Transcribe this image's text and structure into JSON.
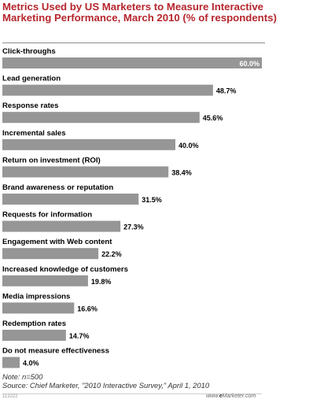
{
  "title": "Metrics Used by US Marketers to Measure Interactive Marketing Performance, March 2010 (% of respondents)",
  "note": "Note: n=500",
  "source": "Source: Chief Marketer, \"2010 Interactive Survey,\" April 1, 2010",
  "footer_id": "113222",
  "brand": {
    "prefix": "www.",
    "e": "e",
    "name": "Marketer",
    "suffix": ".com"
  },
  "colors": {
    "title": "#b5262d",
    "bar": "#969696",
    "text": "#000000"
  },
  "chart_data": {
    "type": "bar",
    "orientation": "horizontal",
    "title": "Metrics Used by US Marketers to Measure Interactive Marketing Performance, March 2010 (% of respondents)",
    "categories": [
      "Click-throughs",
      "Lead generation",
      "Response rates",
      "Incremental sales",
      "Return on investment (ROI)",
      "Brand awareness or reputation",
      "Requests for information",
      "Engagement with Web content",
      "Increased knowledge of customers",
      "Media impressions",
      "Redemption rates",
      "Do not measure effectiveness"
    ],
    "values": [
      60.0,
      48.7,
      45.6,
      40.0,
      38.4,
      31.5,
      27.3,
      22.2,
      19.8,
      16.6,
      14.7,
      4.0
    ],
    "value_labels": [
      "60.0%",
      "48.7%",
      "45.6%",
      "40.0%",
      "38.4%",
      "31.5%",
      "27.3%",
      "22.2%",
      "19.8%",
      "16.6%",
      "14.7%",
      "4.0%"
    ],
    "xlim": [
      0,
      60
    ],
    "grid": false,
    "legend": "none"
  }
}
